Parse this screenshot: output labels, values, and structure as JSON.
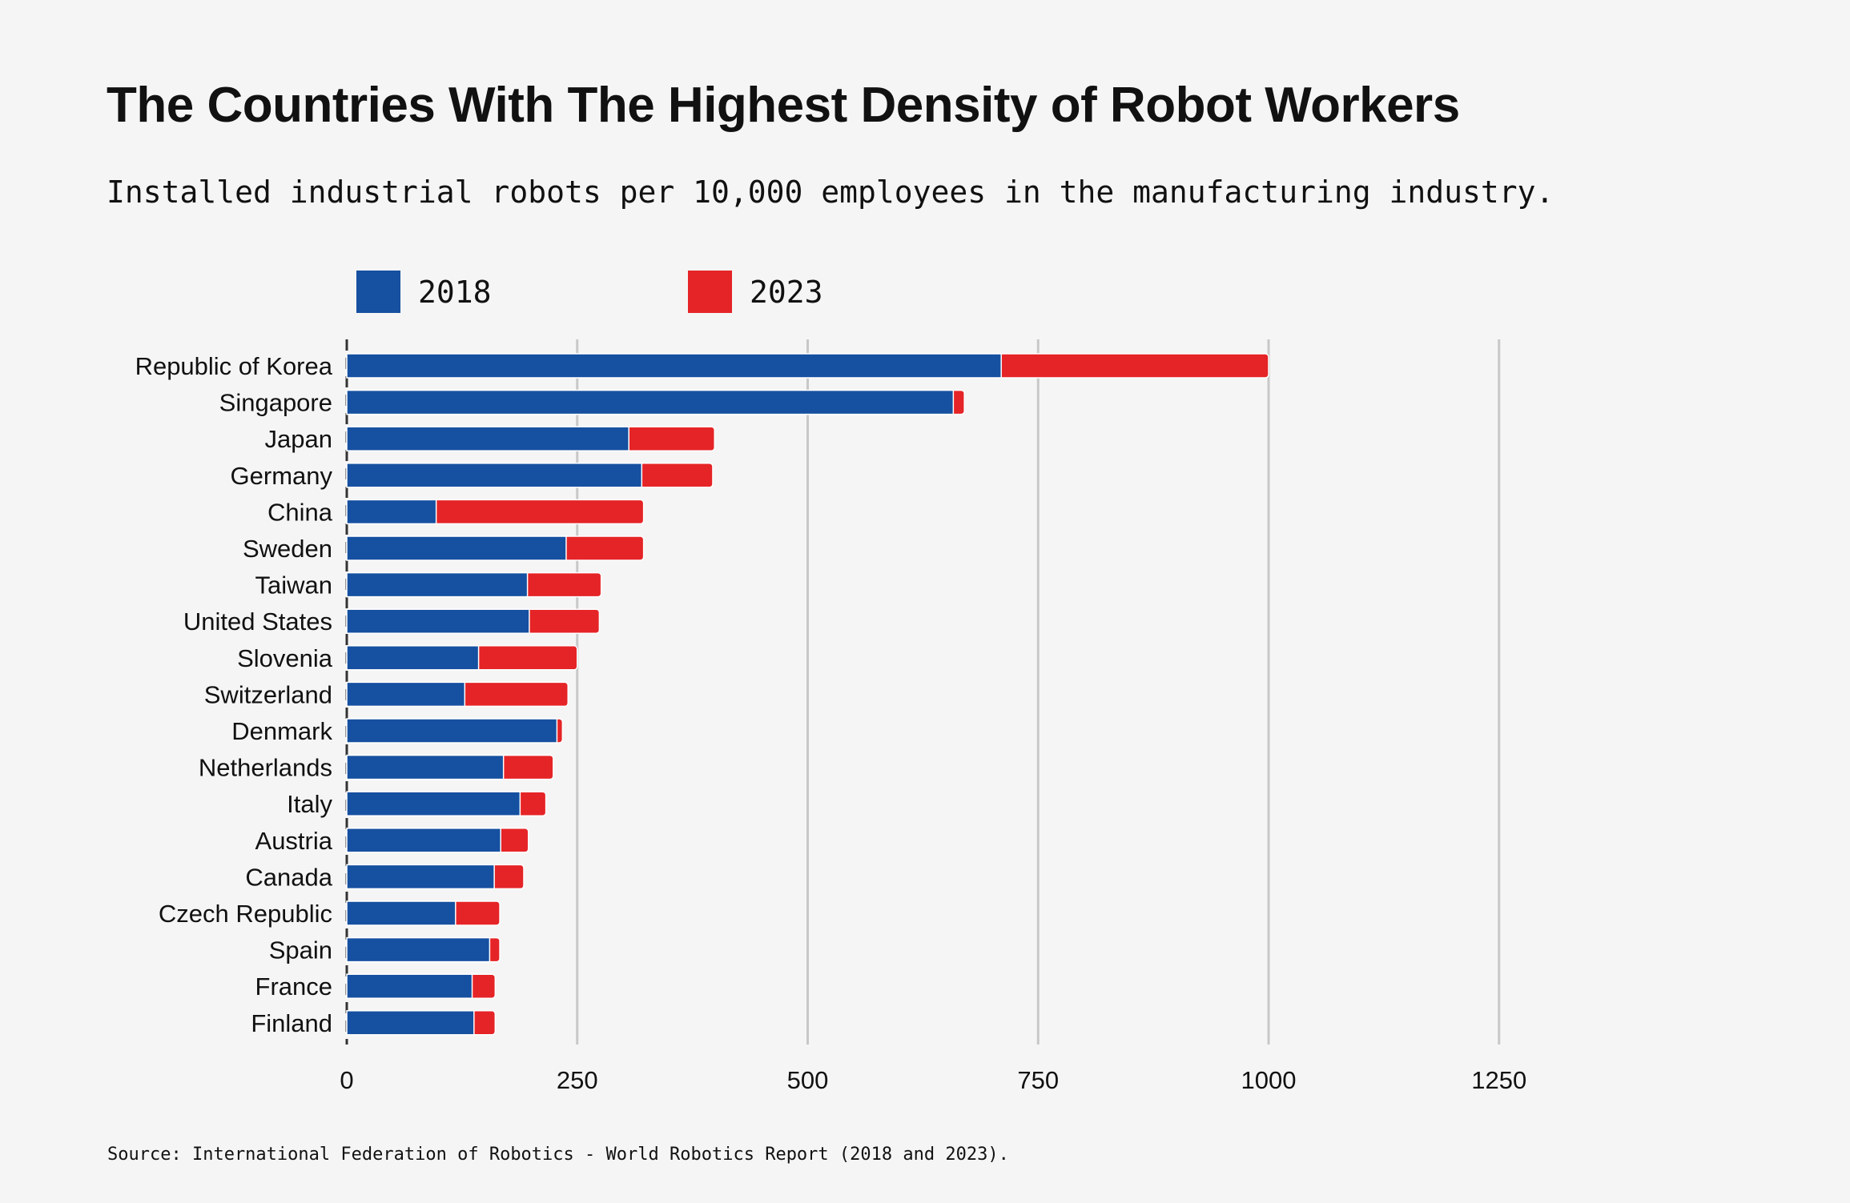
{
  "chart_data": {
    "type": "bar",
    "orientation": "horizontal",
    "overlay": true,
    "title": "The Countries With The Highest Density of Robot Workers",
    "subtitle": "Installed industrial robots per 10,000 employees in the manufacturing industry.",
    "source": "Source: International Federation of Robotics - World Robotics Report (2018 and 2023).",
    "categories": [
      "Republic of Korea",
      "Singapore",
      "Japan",
      "Germany",
      "China",
      "Sweden",
      "Taiwan",
      "United States",
      "Slovenia",
      "Switzerland",
      "Denmark",
      "Netherlands",
      "Italy",
      "Austria",
      "Canada",
      "Czech Republic",
      "Spain",
      "France",
      "Finland"
    ],
    "series": [
      {
        "name": "2018",
        "color": "#1650a0",
        "values": [
          710,
          658,
          306,
          320,
          97,
          238,
          196,
          198,
          143,
          128,
          228,
          170,
          188,
          167,
          160,
          118,
          155,
          136,
          138
        ]
      },
      {
        "name": "2023",
        "color": "#e52427",
        "values": [
          1000,
          670,
          399,
          397,
          322,
          322,
          276,
          274,
          250,
          240,
          234,
          224,
          216,
          197,
          192,
          166,
          166,
          161,
          161
        ]
      }
    ],
    "xlim": [
      0,
      1250
    ],
    "xticks": [
      "0",
      "250",
      "500",
      "750",
      "1000",
      "1250"
    ],
    "grid": true,
    "legend": "top-left"
  }
}
